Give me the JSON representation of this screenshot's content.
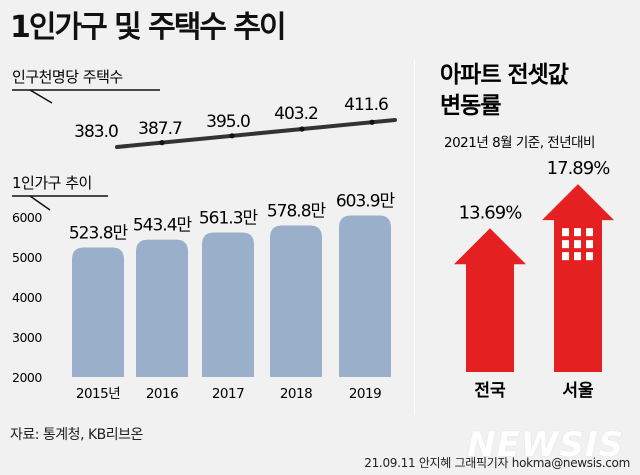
{
  "header": {
    "title": "1인가구 및 주택수 추이"
  },
  "housing_section": {
    "label": "인구천명당 주택수"
  },
  "household_section": {
    "label": "1인가구 추이"
  },
  "apt_section": {
    "title_line1": "아파트 전셋값",
    "title_line2": "변동률",
    "subtitle": "2021년 8월 기준, 전년대비"
  },
  "footer": {
    "source": "자료: 통계청, KB리브온",
    "credit": "21.09.11 안지혜 그래픽기자  hokma@newsis.com",
    "logo": "NEWSIS"
  },
  "colors": {
    "bar": "#9aafc9",
    "arrow": "#e42020",
    "line": "#333333",
    "background": "#f1f1f1"
  },
  "chart_data": [
    {
      "type": "line",
      "title": "인구천명당 주택수",
      "x": [
        "2015",
        "2016",
        "2017",
        "2018",
        "2019"
      ],
      "values": [
        383.0,
        387.7,
        395.0,
        403.2,
        411.6
      ],
      "labels": [
        "383.0",
        "387.7",
        "395.0",
        "403.2",
        "411.6"
      ]
    },
    {
      "type": "bar",
      "title": "1인가구 추이",
      "categories": [
        "2015년",
        "2016",
        "2017",
        "2018",
        "2019"
      ],
      "values": [
        523.8,
        543.4,
        561.3,
        578.8,
        603.9
      ],
      "labels": [
        "523.8만",
        "543.4만",
        "561.3만",
        "578.8만",
        "603.9만"
      ],
      "yticks": [
        "6000",
        "5000",
        "4000",
        "3000",
        "2000"
      ],
      "ylim": [
        2000,
        6000
      ],
      "grid": false
    },
    {
      "type": "bar",
      "title": "아파트 전셋값 변동률",
      "categories": [
        "전국",
        "서울"
      ],
      "values": [
        13.69,
        17.89
      ],
      "labels": [
        "13.69%",
        "17.89%"
      ]
    }
  ]
}
